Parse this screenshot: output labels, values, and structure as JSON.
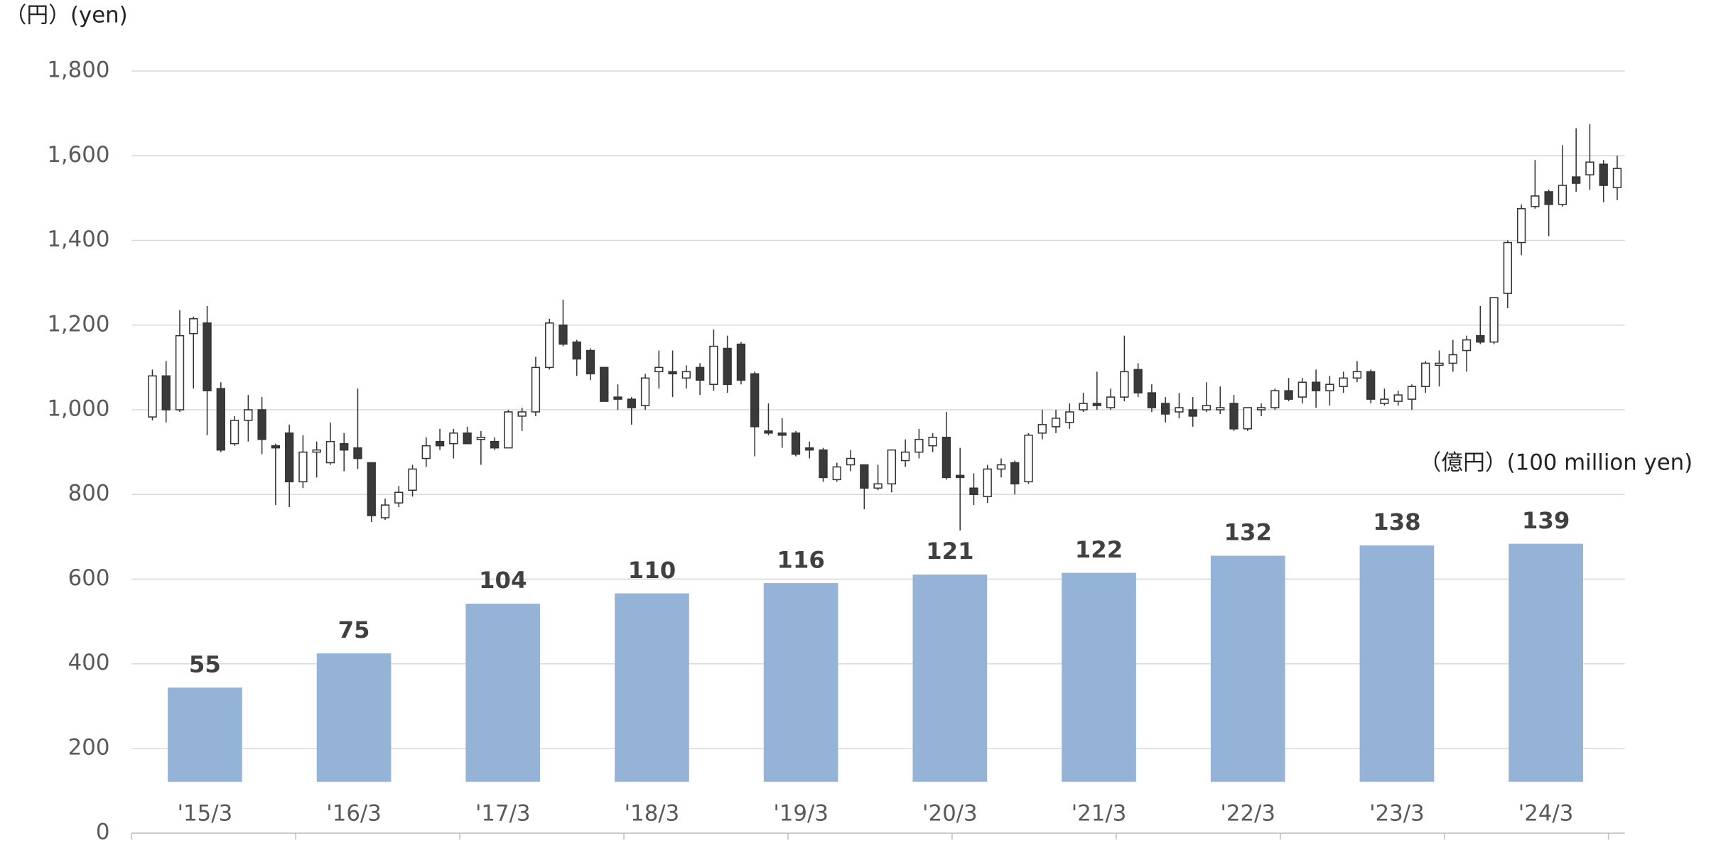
{
  "chart_data": {
    "type": "candlestick+bar",
    "y_label": "（円）(yen)",
    "y2_label": "（億円）(100 million yen)",
    "ylim": [
      0,
      1800
    ],
    "yticks": [
      0,
      200,
      400,
      600,
      800,
      {
        "value": 1000,
        "label": "1,000"
      },
      {
        "value": 1200,
        "label": "1,200"
      },
      {
        "value": 1400,
        "label": "1,400"
      },
      {
        "value": 1600,
        "label": "1,600"
      },
      {
        "value": 1800,
        "label": "1,800"
      }
    ],
    "grid": true,
    "candles": {
      "up_color": "#ffffff",
      "down_color": "#3a3a3a",
      "open": [
        983,
        1080,
        1000,
        1180,
        1205,
        1050,
        920,
        975,
        1000,
        915,
        945,
        830,
        900,
        875,
        920,
        910,
        875,
        745,
        780,
        810,
        885,
        925,
        920,
        945,
        930,
        925,
        910,
        985,
        995,
        1100,
        1200,
        1160,
        1140,
        1100,
        1030,
        1025,
        1010,
        1090,
        1090,
        1075,
        1100,
        1060,
        1145,
        1155,
        1085,
        950,
        945,
        945,
        910,
        905,
        835,
        870,
        870,
        815,
        825,
        880,
        900,
        915,
        935,
        845,
        815,
        795,
        860,
        875,
        830,
        945,
        960,
        970,
        1000,
        1015,
        1005,
        1030,
        1095,
        1040,
        1015,
        995,
        1000,
        1000,
        1000,
        1015,
        955,
        1000,
        1005,
        1045,
        1030,
        1065,
        1045,
        1055,
        1075,
        1090,
        1015,
        1020,
        1025,
        1055,
        1105,
        1110,
        1140,
        1175,
        1160,
        1275,
        1395,
        1480,
        1515,
        1485,
        1550,
        1555,
        1580,
        1525
      ],
      "high": [
        1095,
        1115,
        1235,
        1220,
        1245,
        1065,
        985,
        1035,
        1030,
        920,
        965,
        940,
        925,
        970,
        945,
        1050,
        875,
        790,
        820,
        870,
        935,
        955,
        955,
        960,
        950,
        935,
        1000,
        1005,
        1125,
        1215,
        1260,
        1165,
        1145,
        1100,
        1060,
        1030,
        1085,
        1140,
        1140,
        1105,
        1110,
        1190,
        1175,
        1160,
        1090,
        1015,
        980,
        950,
        925,
        910,
        875,
        905,
        870,
        870,
        905,
        930,
        955,
        945,
        995,
        910,
        850,
        870,
        885,
        880,
        945,
        1000,
        1000,
        1015,
        1040,
        1090,
        1050,
        1175,
        1110,
        1060,
        1030,
        1040,
        1030,
        1065,
        1055,
        1035,
        1005,
        1015,
        1050,
        1075,
        1075,
        1095,
        1080,
        1090,
        1115,
        1095,
        1050,
        1045,
        1060,
        1115,
        1140,
        1165,
        1175,
        1245,
        1265,
        1400,
        1485,
        1590,
        1520,
        1625,
        1665,
        1675,
        1590,
        1600
      ],
      "low": [
        975,
        970,
        995,
        1050,
        940,
        900,
        915,
        925,
        895,
        775,
        770,
        815,
        840,
        870,
        855,
        860,
        735,
        740,
        770,
        795,
        865,
        905,
        885,
        920,
        870,
        905,
        910,
        950,
        985,
        1095,
        1150,
        1080,
        1070,
        1020,
        1000,
        965,
        1000,
        1050,
        1030,
        1050,
        1035,
        1045,
        1040,
        1060,
        890,
        940,
        910,
        890,
        885,
        830,
        830,
        855,
        765,
        810,
        805,
        865,
        885,
        900,
        835,
        715,
        775,
        780,
        840,
        800,
        825,
        930,
        945,
        955,
        995,
        1000,
        1000,
        1020,
        1030,
        995,
        970,
        980,
        960,
        995,
        990,
        950,
        950,
        985,
        1000,
        1020,
        1015,
        1005,
        1010,
        1040,
        1065,
        1015,
        1010,
        1010,
        1000,
        1040,
        1055,
        1090,
        1090,
        1155,
        1155,
        1240,
        1365,
        1475,
        1410,
        1480,
        1515,
        1520,
        1490,
        1495
      ],
      "close": [
        1080,
        1000,
        1175,
        1215,
        1045,
        905,
        975,
        1000,
        930,
        910,
        830,
        900,
        905,
        925,
        905,
        885,
        750,
        775,
        805,
        860,
        915,
        915,
        945,
        920,
        935,
        910,
        995,
        995,
        1100,
        1205,
        1155,
        1120,
        1085,
        1020,
        1025,
        1005,
        1075,
        1100,
        1085,
        1090,
        1070,
        1150,
        1060,
        1070,
        960,
        945,
        940,
        895,
        905,
        840,
        865,
        885,
        815,
        825,
        905,
        900,
        930,
        935,
        840,
        840,
        800,
        860,
        870,
        825,
        940,
        965,
        980,
        995,
        1015,
        1010,
        1030,
        1090,
        1040,
        1005,
        990,
        1005,
        985,
        1010,
        1005,
        955,
        1005,
        1005,
        1045,
        1025,
        1065,
        1045,
        1060,
        1075,
        1090,
        1025,
        1025,
        1035,
        1055,
        1110,
        1110,
        1130,
        1165,
        1160,
        1265,
        1395,
        1475,
        1505,
        1485,
        1530,
        1535,
        1585,
        1530,
        1570
      ]
    },
    "bars": {
      "categories": [
        "'15/3",
        "'16/3",
        "'17/3",
        "'18/3",
        "'19/3",
        "'20/3",
        "'21/3",
        "'22/3",
        "'23/3",
        "'24/3"
      ],
      "values": [
        55,
        75,
        104,
        110,
        116,
        121,
        122,
        132,
        138,
        139
      ],
      "color": "#95b3d7",
      "axis": "y2"
    },
    "y2lim": [
      -30,
      415
    ]
  }
}
